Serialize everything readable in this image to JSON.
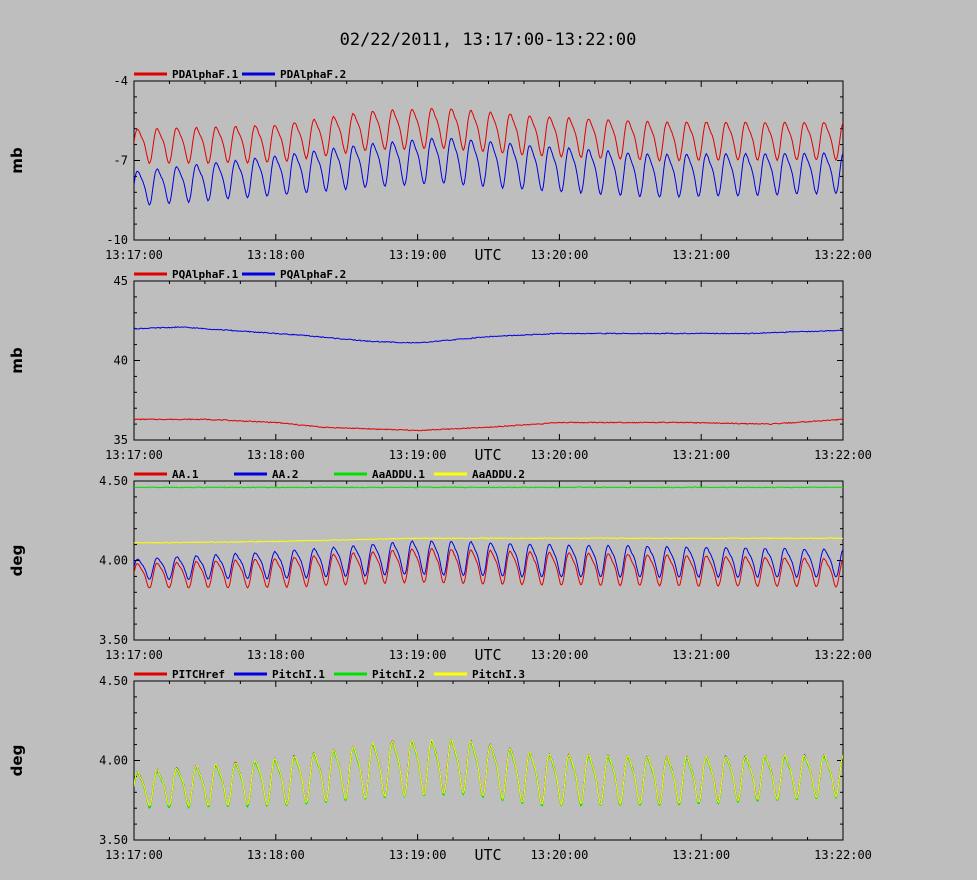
{
  "title": "02/22/2011, 13:17:00-13:22:00",
  "colors": {
    "background": "#bebebe",
    "red": "#e00000",
    "blue": "#0000e0",
    "green": "#00e000",
    "yellow": "#ffff00",
    "black": "#000000"
  },
  "chart_data": [
    {
      "type": "line",
      "title": "",
      "xlabel": "UTC",
      "ylabel": "mb",
      "xlim": [
        "13:17:00",
        "13:22:00"
      ],
      "x_ticks": [
        "13:17:00",
        "13:18:00",
        "13:19:00",
        "13:20:00",
        "13:21:00",
        "13:22:00"
      ],
      "ylim": [
        -10,
        -4
      ],
      "y_ticks": [
        "-4",
        "-7",
        "-10"
      ],
      "y_tick_values": [
        -4,
        -7,
        -10
      ],
      "grid": false,
      "legend_position": "top-left",
      "series": [
        {
          "name": "PDAlphaF.1",
          "color": "red",
          "x_seconds_span": [
            0,
            300
          ],
          "oscillation_period_s": 8.3,
          "mean_knots": [
            [
              0,
              -6.4
            ],
            [
              60,
              -6.3
            ],
            [
              100,
              -5.8
            ],
            [
              130,
              -5.7
            ],
            [
              170,
              -6.0
            ],
            [
              220,
              -6.2
            ],
            [
              300,
              -6.2
            ]
          ],
          "amplitude_knots": [
            [
              0,
              0.6
            ],
            [
              130,
              0.7
            ],
            [
              300,
              0.65
            ]
          ]
        },
        {
          "name": "PDAlphaF.2",
          "color": "blue",
          "x_seconds_span": [
            0,
            300
          ],
          "oscillation_period_s": 8.3,
          "mean_knots": [
            [
              0,
              -8.0
            ],
            [
              60,
              -7.5
            ],
            [
              100,
              -7.1
            ],
            [
              130,
              -6.9
            ],
            [
              170,
              -7.2
            ],
            [
              220,
              -7.5
            ],
            [
              300,
              -7.4
            ]
          ],
          "amplitude_knots": [
            [
              0,
              0.6
            ],
            [
              130,
              0.8
            ],
            [
              300,
              0.7
            ]
          ]
        }
      ]
    },
    {
      "type": "line",
      "title": "",
      "xlabel": "UTC",
      "ylabel": "mb",
      "xlim": [
        "13:17:00",
        "13:22:00"
      ],
      "x_ticks": [
        "13:17:00",
        "13:18:00",
        "13:19:00",
        "13:20:00",
        "13:21:00",
        "13:22:00"
      ],
      "ylim": [
        35,
        45
      ],
      "y_ticks": [
        "45",
        "40",
        "35"
      ],
      "y_tick_values": [
        45,
        40,
        35
      ],
      "grid": false,
      "legend_position": "top-left",
      "series": [
        {
          "name": "PQAlphaF.1",
          "color": "red",
          "x_seconds_span": [
            0,
            300
          ],
          "oscillation_period_s": 0,
          "mean_knots": [
            [
              0,
              36.3
            ],
            [
              30,
              36.3
            ],
            [
              60,
              36.1
            ],
            [
              80,
              35.8
            ],
            [
              120,
              35.6
            ],
            [
              150,
              35.8
            ],
            [
              180,
              36.1
            ],
            [
              230,
              36.1
            ],
            [
              270,
              36.0
            ],
            [
              300,
              36.3
            ]
          ],
          "amplitude_knots": [
            [
              0,
              0.0
            ],
            [
              300,
              0.0
            ]
          ]
        },
        {
          "name": "PQAlphaF.2",
          "color": "blue",
          "x_seconds_span": [
            0,
            300
          ],
          "oscillation_period_s": 0,
          "mean_knots": [
            [
              0,
              42.0
            ],
            [
              20,
              42.1
            ],
            [
              40,
              41.9
            ],
            [
              70,
              41.6
            ],
            [
              100,
              41.2
            ],
            [
              120,
              41.1
            ],
            [
              150,
              41.5
            ],
            [
              180,
              41.7
            ],
            [
              260,
              41.7
            ],
            [
              300,
              41.9
            ]
          ],
          "amplitude_knots": [
            [
              0,
              0.0
            ],
            [
              300,
              0.0
            ]
          ]
        }
      ]
    },
    {
      "type": "line",
      "title": "",
      "xlabel": "UTC",
      "ylabel": "deg",
      "xlim": [
        "13:17:00",
        "13:22:00"
      ],
      "x_ticks": [
        "13:17:00",
        "13:18:00",
        "13:19:00",
        "13:20:00",
        "13:21:00",
        "13:22:00"
      ],
      "ylim": [
        3.5,
        4.5
      ],
      "y_ticks": [
        "4.50",
        "4.00",
        "3.50"
      ],
      "y_tick_values": [
        4.5,
        4.0,
        3.5
      ],
      "grid": false,
      "legend_position": "top-left",
      "series": [
        {
          "name": "AA.1",
          "color": "red",
          "x_seconds_span": [
            0,
            300
          ],
          "oscillation_period_s": 8.3,
          "mean_knots": [
            [
              0,
              3.91
            ],
            [
              60,
              3.93
            ],
            [
              120,
              3.98
            ],
            [
              170,
              3.96
            ],
            [
              300,
              3.93
            ]
          ],
          "amplitude_knots": [
            [
              0,
              0.07
            ],
            [
              130,
              0.1
            ],
            [
              300,
              0.08
            ]
          ]
        },
        {
          "name": "AA.2",
          "color": "blue",
          "x_seconds_span": [
            0,
            300
          ],
          "oscillation_period_s": 8.3,
          "mean_knots": [
            [
              0,
              3.95
            ],
            [
              60,
              3.98
            ],
            [
              120,
              4.03
            ],
            [
              170,
              4.01
            ],
            [
              300,
              3.99
            ]
          ],
          "amplitude_knots": [
            [
              0,
              0.06
            ],
            [
              130,
              0.1
            ],
            [
              300,
              0.08
            ]
          ]
        },
        {
          "name": "AaADDU.1",
          "color": "green",
          "x_seconds_span": [
            0,
            300
          ],
          "oscillation_period_s": 0,
          "mean_knots": [
            [
              0,
              4.46
            ],
            [
              300,
              4.46
            ]
          ],
          "amplitude_knots": [
            [
              0,
              0.0
            ],
            [
              300,
              0.0
            ]
          ]
        },
        {
          "name": "AaADDU.2",
          "color": "yellow",
          "x_seconds_span": [
            0,
            300
          ],
          "oscillation_period_s": 0,
          "mean_knots": [
            [
              0,
              4.11
            ],
            [
              60,
              4.12
            ],
            [
              120,
              4.14
            ],
            [
              170,
              4.14
            ],
            [
              300,
              4.14
            ]
          ],
          "amplitude_knots": [
            [
              0,
              0.0
            ],
            [
              300,
              0.0
            ]
          ]
        }
      ]
    },
    {
      "type": "line",
      "title": "",
      "xlabel": "UTC",
      "ylabel": "deg",
      "xlim": [
        "13:17:00",
        "13:22:00"
      ],
      "x_ticks": [
        "13:17:00",
        "13:18:00",
        "13:19:00",
        "13:20:00",
        "13:21:00",
        "13:22:00"
      ],
      "ylim": [
        3.5,
        4.5
      ],
      "y_ticks": [
        "4.50",
        "4.00",
        "3.50"
      ],
      "y_tick_values": [
        4.5,
        4.0,
        3.5
      ],
      "grid": false,
      "legend_position": "top-left",
      "series": [
        {
          "name": "PITCHref",
          "color": "red",
          "x_seconds_span": [
            0,
            300
          ],
          "oscillation_period_s": 8.3,
          "mean_knots": [
            [
              0,
              3.83
            ],
            [
              60,
              3.88
            ],
            [
              110,
              3.97
            ],
            [
              140,
              3.98
            ],
            [
              170,
              3.9
            ],
            [
              230,
              3.89
            ],
            [
              300,
              3.92
            ]
          ],
          "amplitude_knots": [
            [
              0,
              0.1
            ],
            [
              110,
              0.16
            ],
            [
              300,
              0.12
            ]
          ]
        },
        {
          "name": "PitchI.1",
          "color": "blue",
          "x_seconds_span": [
            0,
            300
          ],
          "oscillation_period_s": 8.3,
          "mean_knots": [
            [
              0,
              3.83
            ],
            [
              60,
              3.88
            ],
            [
              110,
              3.97
            ],
            [
              140,
              3.98
            ],
            [
              170,
              3.9
            ],
            [
              230,
              3.89
            ],
            [
              300,
              3.92
            ]
          ],
          "amplitude_knots": [
            [
              0,
              0.1
            ],
            [
              110,
              0.16
            ],
            [
              300,
              0.12
            ]
          ]
        },
        {
          "name": "PitchI.2",
          "color": "green",
          "x_seconds_span": [
            0,
            300
          ],
          "oscillation_period_s": 8.3,
          "mean_knots": [
            [
              0,
              3.82
            ],
            [
              60,
              3.87
            ],
            [
              110,
              3.96
            ],
            [
              140,
              3.97
            ],
            [
              170,
              3.89
            ],
            [
              230,
              3.88
            ],
            [
              300,
              3.91
            ]
          ],
          "amplitude_knots": [
            [
              0,
              0.1
            ],
            [
              110,
              0.16
            ],
            [
              300,
              0.12
            ]
          ]
        },
        {
          "name": "PitchI.3",
          "color": "yellow",
          "x_seconds_span": [
            0,
            300
          ],
          "oscillation_period_s": 8.3,
          "mean_knots": [
            [
              0,
              3.83
            ],
            [
              60,
              3.88
            ],
            [
              110,
              3.97
            ],
            [
              140,
              3.98
            ],
            [
              170,
              3.9
            ],
            [
              230,
              3.89
            ],
            [
              300,
              3.92
            ]
          ],
          "amplitude_knots": [
            [
              0,
              0.1
            ],
            [
              110,
              0.16
            ],
            [
              300,
              0.12
            ]
          ]
        }
      ]
    }
  ]
}
